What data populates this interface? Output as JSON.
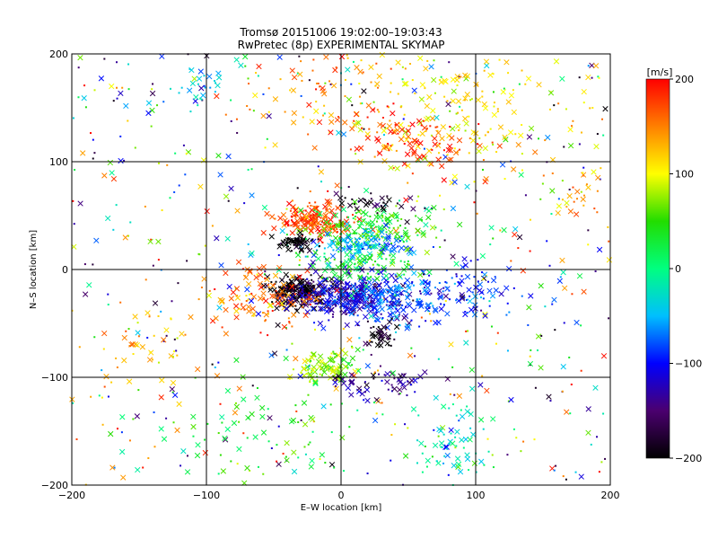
{
  "chart_data": {
    "type": "scatter",
    "title": "Tromsø 20151006 19:02:00–19:03:43",
    "subtitle": "RwPretec (8p) EXPERIMENTAL SKYMAP",
    "xlabel": "E–W location [km]",
    "ylabel": "N–S location [km]",
    "xlim": [
      -200,
      200
    ],
    "ylim": [
      -200,
      200
    ],
    "x_ticks": [
      -200,
      -100,
      0,
      100,
      200
    ],
    "y_ticks": [
      -200,
      -100,
      0,
      100,
      200
    ],
    "x_tick_labels": [
      "−200",
      "−100",
      "0",
      "100",
      "200"
    ],
    "y_tick_labels": [
      "−200",
      "−100",
      "0",
      "100",
      "200"
    ],
    "grid": true,
    "colorbar": {
      "label": "[m/s]",
      "min": -200,
      "max": 200,
      "ticks": [
        200,
        100,
        0,
        -100,
        -200
      ],
      "tick_labels": [
        "200",
        "100",
        "0",
        "−100",
        "−200"
      ],
      "colormap": [
        "#000000",
        "#4b006f",
        "#0000ff",
        "#00bfff",
        "#00ff80",
        "#22dd00",
        "#ffff00",
        "#ff8000",
        "#ff0000"
      ]
    },
    "clusters": [
      {
        "cx": -20,
        "cy": 45,
        "sx": 14,
        "sy": 8,
        "v": 175,
        "n": 170
      },
      {
        "cx": 20,
        "cy": 40,
        "sx": 25,
        "sy": 10,
        "v": 40,
        "n": 160
      },
      {
        "cx": 15,
        "cy": 22,
        "sx": 18,
        "sy": 7,
        "v": -60,
        "n": 110
      },
      {
        "cx": -35,
        "cy": 25,
        "sx": 7,
        "sy": 3,
        "v": -200,
        "n": 60
      },
      {
        "cx": 25,
        "cy": 62,
        "sx": 14,
        "sy": 4,
        "v": -185,
        "n": 30
      },
      {
        "cx": -30,
        "cy": -20,
        "sx": 12,
        "sy": 7,
        "v": -195,
        "n": 220
      },
      {
        "cx": 5,
        "cy": -25,
        "sx": 20,
        "sy": 10,
        "v": -120,
        "n": 280
      },
      {
        "cx": 45,
        "cy": -25,
        "sx": 25,
        "sy": 12,
        "v": -70,
        "n": 180
      },
      {
        "cx": 75,
        "cy": -20,
        "sx": 35,
        "sy": 15,
        "v": -100,
        "n": 90
      },
      {
        "cx": 15,
        "cy": 5,
        "sx": 25,
        "sy": 10,
        "v": 30,
        "n": 110
      },
      {
        "cx": -55,
        "cy": -25,
        "sx": 20,
        "sy": 15,
        "v": 160,
        "n": 110
      },
      {
        "cx": -10,
        "cy": -90,
        "sx": 12,
        "sy": 8,
        "v": 70,
        "n": 90
      },
      {
        "cx": 30,
        "cy": -60,
        "sx": 5,
        "sy": 5,
        "v": -200,
        "n": 40
      },
      {
        "cx": 30,
        "cy": -105,
        "sx": 20,
        "sy": 8,
        "v": -140,
        "n": 60
      },
      {
        "cx": 80,
        "cy": -160,
        "sx": 15,
        "sy": 20,
        "v": -20,
        "n": 60
      },
      {
        "cx": -60,
        "cy": -150,
        "sx": 40,
        "sy": 25,
        "v": 40,
        "n": 70
      },
      {
        "cx": 80,
        "cy": 150,
        "sx": 45,
        "sy": 30,
        "v": 110,
        "n": 200
      },
      {
        "cx": 50,
        "cy": 120,
        "sx": 30,
        "sy": 15,
        "v": 180,
        "n": 90
      },
      {
        "cx": -100,
        "cy": 175,
        "sx": 10,
        "sy": 10,
        "v": -40,
        "n": 25
      },
      {
        "cx": -20,
        "cy": 170,
        "sx": 30,
        "sy": 20,
        "v": 150,
        "n": 60
      },
      {
        "cx": 180,
        "cy": 70,
        "sx": 15,
        "sy": 15,
        "v": 140,
        "n": 30
      },
      {
        "cx": -150,
        "cy": -70,
        "sx": 25,
        "sy": 20,
        "v": 120,
        "n": 40
      }
    ],
    "background_points": 600
  }
}
